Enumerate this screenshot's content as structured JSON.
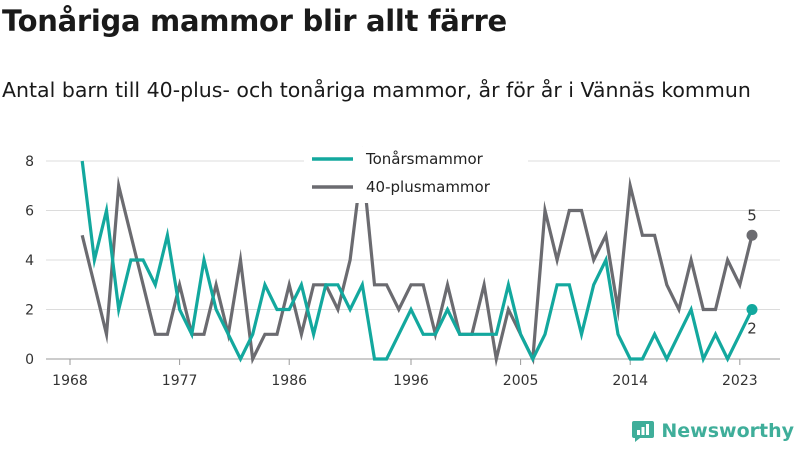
{
  "title": "Tonåriga mammor blir allt färre",
  "subtitle": "Antal barn till 40-plus- och tonåriga mammor, år för år i Vännäs kommun",
  "brand": {
    "name": "Newsworthy",
    "icon": "newsworthy-logo-icon",
    "color": "#3fae9a"
  },
  "chart_data": {
    "type": "line",
    "xlim": [
      1968,
      2024
    ],
    "ylim": [
      0,
      8
    ],
    "x_ticks": [
      1968,
      1977,
      1986,
      1996,
      2005,
      2014,
      2023
    ],
    "y_ticks": [
      0,
      2,
      4,
      6,
      8
    ],
    "grid": "horizontal",
    "legend_position": "top-center",
    "x": [
      1969,
      1970,
      1971,
      1972,
      1973,
      1974,
      1975,
      1976,
      1977,
      1978,
      1979,
      1980,
      1981,
      1982,
      1983,
      1984,
      1985,
      1986,
      1987,
      1988,
      1989,
      1990,
      1991,
      1992,
      1993,
      1994,
      1995,
      1996,
      1997,
      1998,
      1999,
      2000,
      2001,
      2002,
      2003,
      2004,
      2005,
      2006,
      2007,
      2008,
      2009,
      2010,
      2011,
      2012,
      2013,
      2014,
      2015,
      2016,
      2017,
      2018,
      2019,
      2020,
      2021,
      2022,
      2023,
      2024
    ],
    "series": [
      {
        "name": "Tonårsmammor",
        "color": "#13a89e",
        "values": [
          8,
          4,
          6,
          2,
          4,
          4,
          3,
          5,
          2,
          1,
          4,
          2,
          1,
          0,
          1,
          3,
          2,
          2,
          3,
          1,
          3,
          3,
          2,
          3,
          0,
          0,
          1,
          2,
          1,
          1,
          2,
          1,
          1,
          1,
          1,
          3,
          1,
          0,
          1,
          3,
          3,
          1,
          3,
          4,
          1,
          0,
          0,
          1,
          0,
          1,
          2,
          0,
          1,
          0,
          1,
          2
        ],
        "end_label": "2"
      },
      {
        "name": "40-plusmammor",
        "color": "#6b6b70",
        "values": [
          5,
          3,
          1,
          7,
          5,
          3,
          1,
          1,
          3,
          1,
          1,
          3,
          1,
          4,
          0,
          1,
          1,
          3,
          1,
          3,
          3,
          2,
          4,
          8,
          3,
          3,
          2,
          3,
          3,
          1,
          3,
          1,
          1,
          3,
          0,
          2,
          1,
          0,
          6,
          4,
          6,
          6,
          4,
          5,
          2,
          7,
          5,
          5,
          3,
          2,
          4,
          2,
          2,
          4,
          3,
          5
        ],
        "end_label": "5"
      }
    ]
  }
}
